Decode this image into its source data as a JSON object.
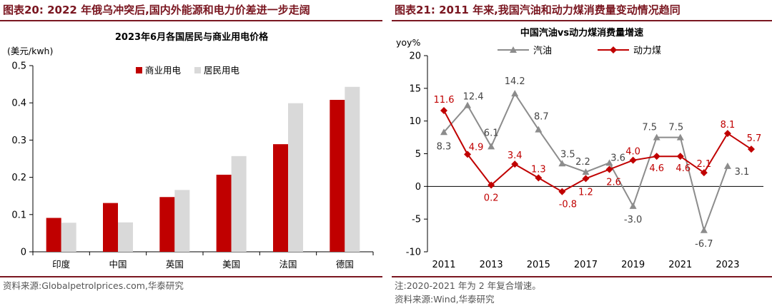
{
  "left": {
    "figure_title": "图表20: 2022 年俄乌冲突后,国内外能源和电力价差进一步走阔",
    "source": "资料来源:Globalpetrolprices.com,华泰研究"
  },
  "right": {
    "figure_title": "图表21: 2011 年来,我国汽油和动力煤消费量变动情况趋同",
    "note": "注:2020-2021 年为 2 年复合增速。",
    "source": "资料来源:Wind,华泰研究"
  },
  "colors": {
    "title_red": "#7a1620",
    "commercial": "#c00000",
    "residential": "#d9d9d9",
    "gasoline": "#8c8c8c",
    "coal": "#c00000"
  },
  "chart_data": [
    {
      "type": "bar",
      "title": "2023年6月各国居民与商业用电价格",
      "ylabel": "(美元/kwh)",
      "categories": [
        "印度",
        "中国",
        "英国",
        "美国",
        "法国",
        "德国"
      ],
      "series": [
        {
          "name": "商业用电",
          "values": [
            0.091,
            0.131,
            0.147,
            0.207,
            0.289,
            0.408
          ]
        },
        {
          "name": "居民用电",
          "values": [
            0.078,
            0.079,
            0.166,
            0.257,
            0.399,
            0.443
          ]
        }
      ],
      "ylim": [
        0,
        0.5
      ],
      "yticks": [
        "0",
        "0.1",
        "0.2",
        "0.3",
        "0.4",
        "0.5"
      ],
      "legend_position": "top-right",
      "grid": false
    },
    {
      "type": "line",
      "title": "中国汽油vs动力煤消费量增速",
      "ylabel": "yoy%",
      "x": [
        2011,
        2012,
        2013,
        2014,
        2015,
        2016,
        2017,
        2018,
        2019,
        2020,
        2021,
        2022,
        2023,
        2024
      ],
      "xtick_labels": [
        "2011",
        "2013",
        "2015",
        "2017",
        "2019",
        "2021",
        "2023"
      ],
      "series": [
        {
          "name": "汽油",
          "values": [
            8.3,
            12.4,
            6.1,
            14.2,
            8.7,
            3.5,
            2.2,
            3.6,
            -3.0,
            7.5,
            7.5,
            -6.7,
            3.1,
            null
          ],
          "labels": [
            "8.3",
            "12.4",
            "6.1",
            "14.2",
            "8.7",
            "3.5",
            "2.2",
            "3.6",
            "-3.0",
            "7.5",
            "7.5",
            "-6.7",
            "3.1",
            ""
          ]
        },
        {
          "name": "动力煤",
          "values": [
            11.6,
            4.9,
            0.2,
            3.4,
            1.3,
            -0.8,
            1.2,
            2.6,
            4.0,
            4.6,
            4.6,
            2.1,
            8.1,
            5.7
          ],
          "labels": [
            "11.6",
            "4.9",
            "0.2",
            "3.4",
            "1.3",
            "-0.8",
            "1.2",
            "2.6",
            "4.0",
            "4.6",
            "4.6",
            "2.1",
            "8.1",
            "5.7"
          ]
        }
      ],
      "ylim": [
        -10,
        20
      ],
      "yticks": [
        "-10",
        "-5",
        "0",
        "5",
        "10",
        "15",
        "20"
      ],
      "legend_position": "top",
      "grid": false
    }
  ]
}
